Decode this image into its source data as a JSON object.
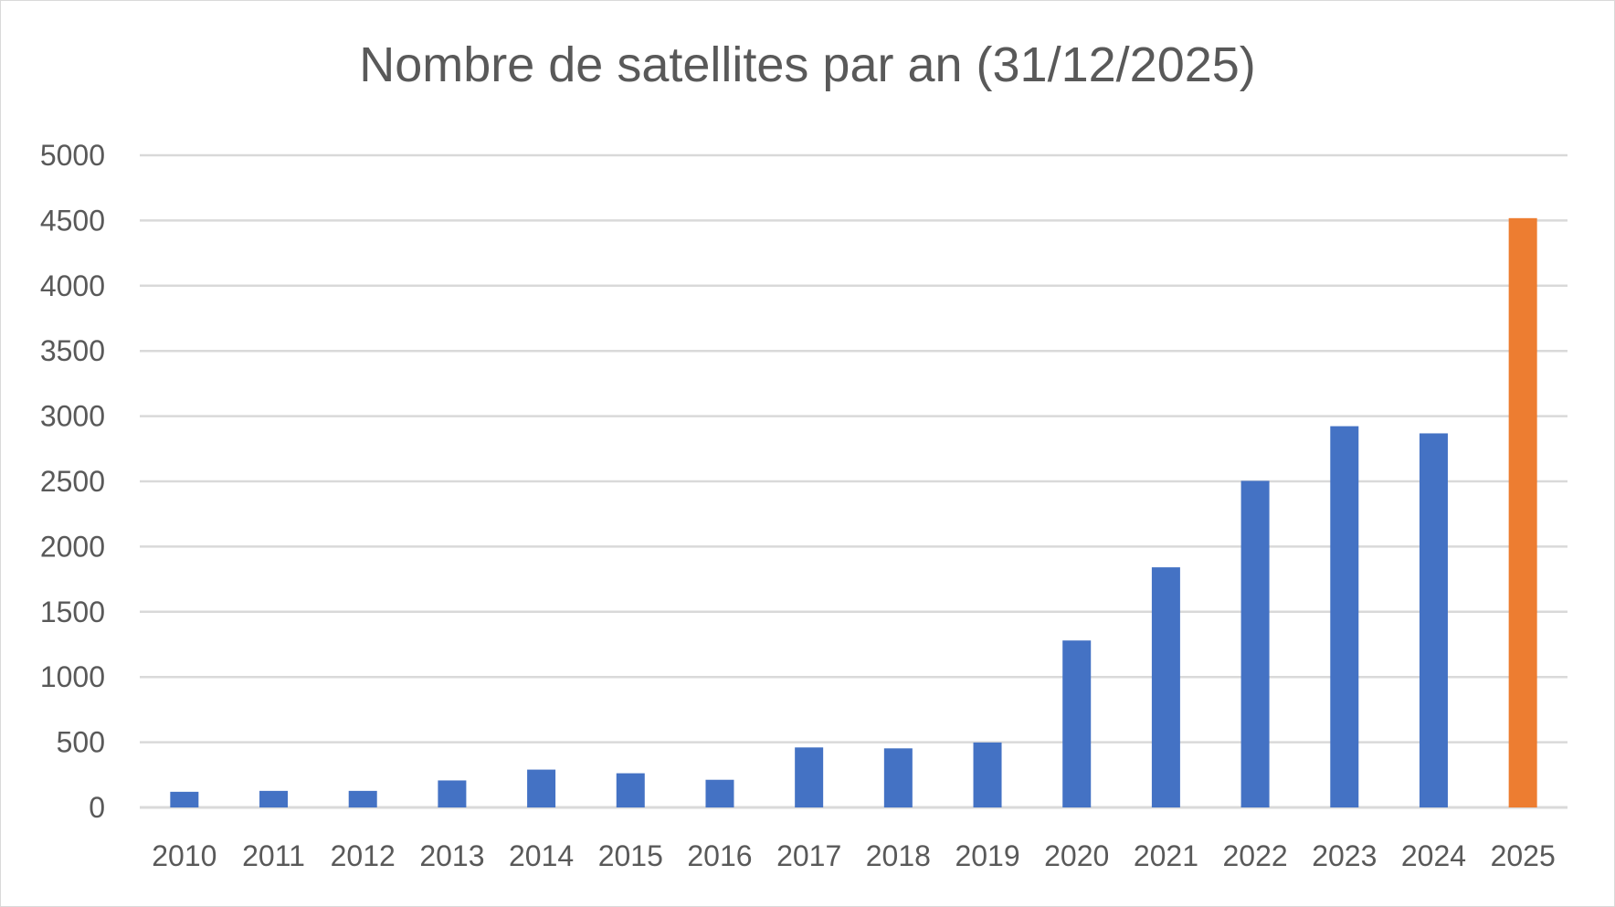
{
  "chart_data": {
    "type": "bar",
    "title": "Nombre de satellites par an (31/12/2025)",
    "xlabel": "",
    "ylabel": "",
    "ylim": [
      0,
      5000
    ],
    "yticks": [
      0,
      500,
      1000,
      1500,
      2000,
      2500,
      3000,
      3500,
      4000,
      4500,
      5000
    ],
    "grid": true,
    "legend": "none",
    "categories": [
      "2010",
      "2011",
      "2012",
      "2013",
      "2014",
      "2015",
      "2016",
      "2017",
      "2018",
      "2019",
      "2020",
      "2021",
      "2022",
      "2023",
      "2024",
      "2025"
    ],
    "values": [
      120,
      127,
      127,
      207,
      290,
      262,
      212,
      460,
      453,
      498,
      1280,
      1841,
      2504,
      2923,
      2868,
      4518
    ],
    "colors": {
      "default": "#4472C4",
      "highlight": "#ED7D31"
    },
    "highlight_category": "2025"
  }
}
